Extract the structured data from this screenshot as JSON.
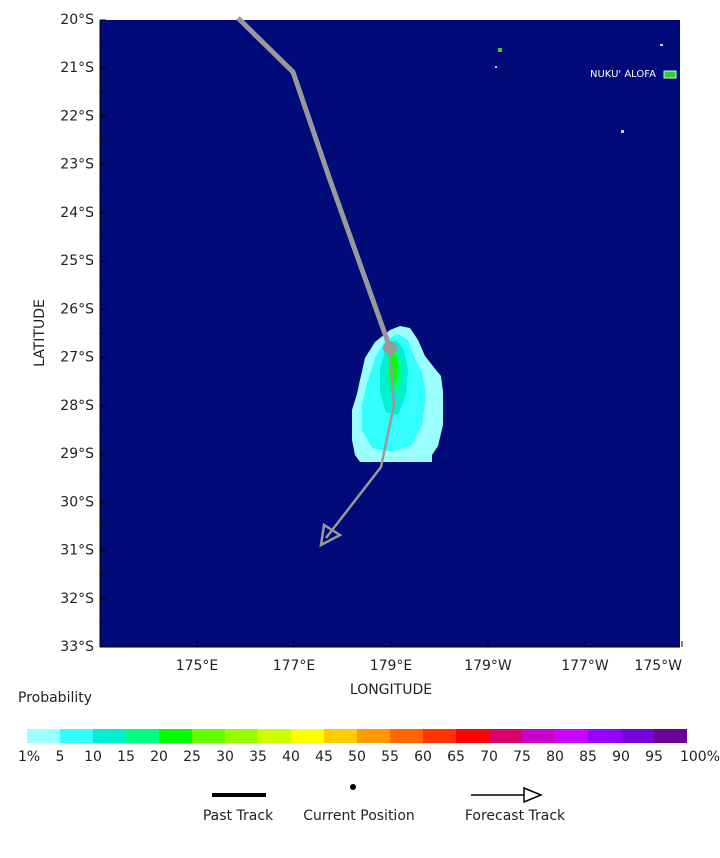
{
  "map": {
    "lat_labels": [
      "20°S",
      "21°S",
      "22°S",
      "23°S",
      "24°S",
      "25°S",
      "26°S",
      "27°S",
      "28°S",
      "29°S",
      "30°S",
      "31°S",
      "32°S",
      "33°S"
    ],
    "lon_labels": [
      "175°E",
      "177°E",
      "179°E",
      "179°W",
      "177°W",
      "175°W"
    ],
    "x_label": "LONGITUDE",
    "y_label": "LATITUDE",
    "place_label": "NUKU' ALOFA"
  },
  "colorbar": {
    "title": "Probability",
    "colors": [
      "#99ffff",
      "#33ffff",
      "#00f0d0",
      "#00ff80",
      "#00ff00",
      "#66ff00",
      "#99ff00",
      "#ccff00",
      "#ffff00",
      "#ffcc00",
      "#ff9900",
      "#ff6600",
      "#ff3300",
      "#ff0000",
      "#d9006b",
      "#cc00cc",
      "#cc00ff",
      "#9900ff",
      "#7700dd",
      "#6a0099"
    ],
    "labels": [
      "1%",
      "5",
      "10",
      "15",
      "20",
      "25",
      "30",
      "35",
      "40",
      "45",
      "50",
      "55",
      "60",
      "65",
      "70",
      "75",
      "80",
      "85",
      "90",
      "95",
      "100%"
    ]
  },
  "legend": {
    "items": [
      "Past Track",
      "Current Position",
      "Forecast Track"
    ]
  }
}
